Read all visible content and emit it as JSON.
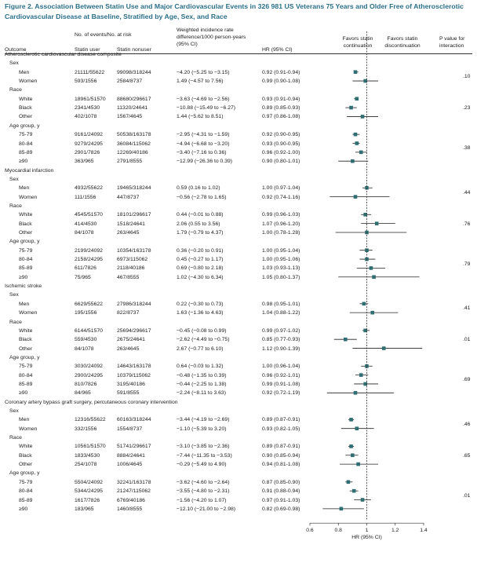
{
  "title": "Figure 2. Association Between Statin Use and Major Cardiovascular Events in 326 981 US Veterans 75 Years and Older Free of Atherosclerotic Cardiovascular Disease at Baseline, Stratified by Age, Sex, and Race",
  "header": {
    "outcome": "Outcome",
    "events": "No. of events/No. at risk",
    "statin_user": "Statin user",
    "statin_nonuser": "Statin nonuser",
    "incidence": "Weighted incidence rate difference/1000 person-years (95% CI)",
    "hr": "HR (95% CI)",
    "favors_cont": "Favors statin continuation",
    "favors_disc": "Favors statin discontinuation",
    "pval": "P value for interaction"
  },
  "chart_data": {
    "type": "forest",
    "xlabel": "HR (95% CI)",
    "xlim": [
      0.6,
      1.4
    ],
    "ticks": [
      "0.6",
      "0.8",
      "1",
      "1.2",
      "1.4"
    ],
    "reference_line": 1,
    "sections": [
      {
        "title": "Atherosclerotic cardiovascular disease composite",
        "groups": [
          {
            "label": "Sex",
            "pval": ".10",
            "rows": [
              {
                "name": "Men",
                "user": "21111/55622",
                "nonuser": "99098/318244",
                "rd": "−4.20 (−5.25 to −3.15)",
                "hr_text": "0.92 (0.91-0.94)",
                "hr": 0.92,
                "lo": 0.91,
                "hi": 0.94
              },
              {
                "name": "Women",
                "user": "593/1556",
                "nonuser": "2584/8737",
                "rd": "1.49 (−4.57 to 7.56)",
                "hr_text": "0.99 (0.90-1.08)",
                "hr": 0.99,
                "lo": 0.9,
                "hi": 1.08
              }
            ]
          },
          {
            "label": "Race",
            "pval": ".23",
            "rows": [
              {
                "name": "White",
                "user": "18961/51570",
                "nonuser": "88680/296617",
                "rd": "−3.63 (−4.69 to −2.56)",
                "hr_text": "0.93 (0.91-0.94)",
                "hr": 0.93,
                "lo": 0.91,
                "hi": 0.94
              },
              {
                "name": "Black",
                "user": "2341/4530",
                "nonuser": "11320/24641",
                "rd": "−10.88 (−15.49 to −6.27)",
                "hr_text": "0.89 (0.85-0.93)",
                "hr": 0.89,
                "lo": 0.85,
                "hi": 0.93
              },
              {
                "name": "Other",
                "user": "402/1078",
                "nonuser": "1567/4645",
                "rd": "1.44 (−5.62 to 8.51)",
                "hr_text": "0.97 (0.86-1.08)",
                "hr": 0.97,
                "lo": 0.86,
                "hi": 1.08
              }
            ]
          },
          {
            "label": "Age group, y",
            "pval": ".38",
            "rows": [
              {
                "name": "75-79",
                "user": "9161/24092",
                "nonuser": "50538/163178",
                "rd": "−2.95 (−4.31 to −1.59)",
                "hr_text": "0.92 (0.90-0.95)",
                "hr": 0.92,
                "lo": 0.9,
                "hi": 0.95
              },
              {
                "name": "80-84",
                "user": "9279/24295",
                "nonuser": "36084/115062",
                "rd": "−4.94 (−6.68 to −3.20)",
                "hr_text": "0.93 (0.90-0.95)",
                "hr": 0.93,
                "lo": 0.9,
                "hi": 0.95
              },
              {
                "name": "85-89",
                "user": "2901/7826",
                "nonuser": "12269/40186",
                "rd": "−3.40 (−7.16 to 0.36)",
                "hr_text": "0.96 (0.92-1.00)",
                "hr": 0.96,
                "lo": 0.92,
                "hi": 1.0
              },
              {
                "name": "≥90",
                "user": "363/965",
                "nonuser": "2791/8555",
                "rd": "−12.99 (−26.36 to 0.39)",
                "hr_text": "0.90 (0.80-1.01)",
                "hr": 0.9,
                "lo": 0.8,
                "hi": 1.01
              }
            ]
          }
        ]
      },
      {
        "title": "Myocardial infarction",
        "groups": [
          {
            "label": "Sex",
            "pval": ".44",
            "rows": [
              {
                "name": "Men",
                "user": "4932/55622",
                "nonuser": "19465/318244",
                "rd": "0.59 (0.16 to 1.02)",
                "hr_text": "1.00 (0.97-1.04)",
                "hr": 1.0,
                "lo": 0.97,
                "hi": 1.04
              },
              {
                "name": "Women",
                "user": "111/1556",
                "nonuser": "447/8737",
                "rd": "−0.56 (−2.78 to 1.65)",
                "hr_text": "0.92 (0.74-1.16)",
                "hr": 0.92,
                "lo": 0.74,
                "hi": 1.16
              }
            ]
          },
          {
            "label": "Race",
            "pval": ".76",
            "rows": [
              {
                "name": "White",
                "user": "4545/51570",
                "nonuser": "18101/296617",
                "rd": "0.44 (−0.01 to 0.88)",
                "hr_text": "0.99 (0.96-1.03)",
                "hr": 0.99,
                "lo": 0.96,
                "hi": 1.03
              },
              {
                "name": "Black",
                "user": "414/4530",
                "nonuser": "1518/24641",
                "rd": "2.06 (0.55 to 3.56)",
                "hr_text": "1.07 (0.96-1.20)",
                "hr": 1.07,
                "lo": 0.96,
                "hi": 1.2
              },
              {
                "name": "Other",
                "user": "84/1078",
                "nonuser": "263/4645",
                "rd": "1.79 (−0.79 to 4.37)",
                "hr_text": "1.00 (0.78-1.28)",
                "hr": 1.0,
                "lo": 0.78,
                "hi": 1.28
              }
            ]
          },
          {
            "label": "Age group, y",
            "pval": ".79",
            "rows": [
              {
                "name": "75-79",
                "user": "2199/24092",
                "nonuser": "10354/163178",
                "rd": "0.36 (−0.20 to 0.91)",
                "hr_text": "1.00 (0.95-1.04)",
                "hr": 1.0,
                "lo": 0.95,
                "hi": 1.04
              },
              {
                "name": "80-84",
                "user": "2158/24295",
                "nonuser": "6973/115062",
                "rd": "0.45 (−0.27 to 1.17)",
                "hr_text": "1.00 (0.95-1.06)",
                "hr": 1.0,
                "lo": 0.95,
                "hi": 1.06
              },
              {
                "name": "85-89",
                "user": "611/7826",
                "nonuser": "2118/40186",
                "rd": "0.69 (−0.80 to 2.18)",
                "hr_text": "1.03 (0.93-1.13)",
                "hr": 1.03,
                "lo": 0.93,
                "hi": 1.13
              },
              {
                "name": "≥90",
                "user": "75/965",
                "nonuser": "467/8555",
                "rd": "1.02 (−4.30 to 6.34)",
                "hr_text": "1.05 (0.80-1.37)",
                "hr": 1.05,
                "lo": 0.8,
                "hi": 1.37
              }
            ]
          }
        ]
      },
      {
        "title": "Ischemic stroke",
        "groups": [
          {
            "label": "Sex",
            "pval": ".41",
            "rows": [
              {
                "name": "Men",
                "user": "6629/55622",
                "nonuser": "27986/318244",
                "rd": "0.22 (−0.30 to 0.73)",
                "hr_text": "0.98 (0.95-1.01)",
                "hr": 0.98,
                "lo": 0.95,
                "hi": 1.01
              },
              {
                "name": "Women",
                "user": "195/1556",
                "nonuser": "822/8737",
                "rd": "1.63 (−1.36 to 4.63)",
                "hr_text": "1.04 (0.88-1.22)",
                "hr": 1.04,
                "lo": 0.88,
                "hi": 1.22
              }
            ]
          },
          {
            "label": "Race",
            "pval": ".01",
            "rows": [
              {
                "name": "White",
                "user": "6144/51570",
                "nonuser": "25694/296617",
                "rd": "−0.45 (−0.08 to 0.99)",
                "hr_text": "0.99 (0.97-1.02)",
                "hr": 0.99,
                "lo": 0.97,
                "hi": 1.02
              },
              {
                "name": "Black",
                "user": "559/4530",
                "nonuser": "2675/24641",
                "rd": "−2.62 (−4.49 to −0.75)",
                "hr_text": "0.85 (0.77-0.93)",
                "hr": 0.85,
                "lo": 0.77,
                "hi": 0.93
              },
              {
                "name": "Other",
                "user": "84/1078",
                "nonuser": "263/4645",
                "rd": "2.67 (−0.77 to 6.10)",
                "hr_text": "1.12 (0.90-1.39)",
                "hr": 1.12,
                "lo": 0.9,
                "hi": 1.39
              }
            ]
          },
          {
            "label": "Age group, y",
            "pval": ".69",
            "rows": [
              {
                "name": "75-79",
                "user": "3030/24092",
                "nonuser": "14643/163178",
                "rd": "0.64 (−0.03 to 1.32)",
                "hr_text": "1.00 (0.96-1.04)",
                "hr": 1.0,
                "lo": 0.96,
                "hi": 1.04
              },
              {
                "name": "80-84",
                "user": "2900/24295",
                "nonuser": "10379/115062",
                "rd": "−0.48 (−1.35 to 0.39)",
                "hr_text": "0.96 (0.92-1.01)",
                "hr": 0.96,
                "lo": 0.92,
                "hi": 1.01
              },
              {
                "name": "85-89",
                "user": "810/7826",
                "nonuser": "3195/40186",
                "rd": "−0.44 (−2.25 to 1.38)",
                "hr_text": "0.99 (0.91-1.08)",
                "hr": 0.99,
                "lo": 0.91,
                "hi": 1.08
              },
              {
                "name": "≥90",
                "user": "84/965",
                "nonuser": "591/8555",
                "rd": "−2.24 (−8.11 to 3.63)",
                "hr_text": "0.92 (0.72-1.19)",
                "hr": 0.92,
                "lo": 0.72,
                "hi": 1.19
              }
            ]
          }
        ]
      },
      {
        "title": "Coronary artery bypass graft surgery, percutaneous coronary intervention",
        "groups": [
          {
            "label": "Sex",
            "pval": ".46",
            "rows": [
              {
                "name": "Men",
                "user": "12316/55622",
                "nonuser": "60163/318244",
                "rd": "−3.44 (−4.19 to −2.69)",
                "hr_text": "0.89 (0.87-0.91)",
                "hr": 0.89,
                "lo": 0.87,
                "hi": 0.91
              },
              {
                "name": "Women",
                "user": "332/1556",
                "nonuser": "1554/8737",
                "rd": "−1.10 (−5.39 to 3.20)",
                "hr_text": "0.93 (0.82-1.05)",
                "hr": 0.93,
                "lo": 0.82,
                "hi": 1.05
              }
            ]
          },
          {
            "label": "Race",
            "pval": ".65",
            "rows": [
              {
                "name": "White",
                "user": "10561/51570",
                "nonuser": "51741/296617",
                "rd": "−3.10 (−3.85 to −2.36)",
                "hr_text": "0.89 (0.87-0.91)",
                "hr": 0.89,
                "lo": 0.87,
                "hi": 0.91
              },
              {
                "name": "Black",
                "user": "1833/4530",
                "nonuser": "8884/24641",
                "rd": "−7.44 (−11.35 to −3.53)",
                "hr_text": "0.90 (0.85-0.94)",
                "hr": 0.9,
                "lo": 0.85,
                "hi": 0.94
              },
              {
                "name": "Other",
                "user": "254/1078",
                "nonuser": "1006/4645",
                "rd": "−0.29 (−5.49 to 4.90)",
                "hr_text": "0.94 (0.81-1.08)",
                "hr": 0.94,
                "lo": 0.81,
                "hi": 1.08
              }
            ]
          },
          {
            "label": "Age group, y",
            "pval": ".01",
            "rows": [
              {
                "name": "75-79",
                "user": "5504/24092",
                "nonuser": "32241/163178",
                "rd": "−3.62 (−4.60 to −2.64)",
                "hr_text": "0.87 (0.85-0.90)",
                "hr": 0.87,
                "lo": 0.85,
                "hi": 0.9
              },
              {
                "name": "80-84",
                "user": "5344/24295",
                "nonuser": "21247/115062",
                "rd": "−3.55 (−4.80 to −2.31)",
                "hr_text": "0.91 (0.88-0.94)",
                "hr": 0.91,
                "lo": 0.88,
                "hi": 0.94
              },
              {
                "name": "85-89",
                "user": "1617/7826",
                "nonuser": "6769/40186",
                "rd": "−1.56 (−4.20 to 1.07)",
                "hr_text": "0.97 (0.91-1.03)",
                "hr": 0.97,
                "lo": 0.91,
                "hi": 1.03
              },
              {
                "name": "≥90",
                "user": "183/965",
                "nonuser": "1460/8555",
                "rd": "−12.10 (−21.00 to −2.98)",
                "hr_text": "0.82 (0.69-0.98)",
                "hr": 0.82,
                "lo": 0.69,
                "hi": 0.98
              }
            ]
          }
        ]
      }
    ],
    "colors": {
      "marker": "#2f6e72",
      "text": "#1a1a1a",
      "title": "#2b6f8a",
      "line": "#333333"
    }
  }
}
